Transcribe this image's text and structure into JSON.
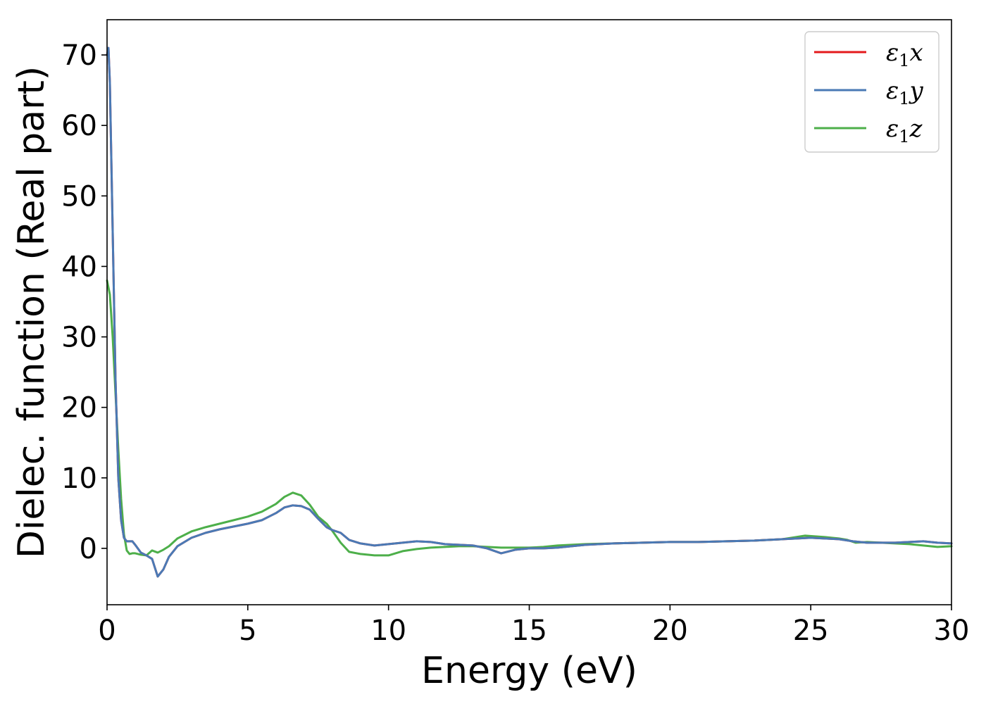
{
  "chart_data": {
    "type": "line",
    "title": "",
    "xlabel": "Energy (eV)",
    "ylabel": "Dielec. function (Real part)",
    "xlim": [
      0,
      30
    ],
    "ylim": [
      -8,
      75
    ],
    "xticks": [
      0,
      5,
      10,
      15,
      20,
      25,
      30
    ],
    "yticks": [
      0,
      10,
      20,
      30,
      40,
      50,
      60,
      70
    ],
    "grid": false,
    "legend_position": "top-right",
    "series": [
      {
        "name": "ε₁x",
        "legend": {
          "base": "ε",
          "sub": "1",
          "suffix": "x"
        },
        "color": "#e41a1c",
        "x": [
          0,
          0.05,
          0.1,
          0.2,
          0.3,
          0.4,
          0.5,
          0.6,
          0.7,
          0.8,
          0.9,
          1.0,
          1.2,
          1.4,
          1.6,
          1.8,
          2.0,
          2.2,
          2.5,
          3,
          3.5,
          4,
          4.5,
          5,
          5.5,
          6,
          6.3,
          6.6,
          6.9,
          7.2,
          7.5,
          7.8,
          8,
          8.3,
          8.6,
          9,
          9.5,
          10,
          10.5,
          11,
          11.5,
          12,
          12.5,
          13,
          13.5,
          14,
          14.5,
          15,
          15.5,
          16,
          16.5,
          17,
          18,
          19,
          20,
          21,
          22,
          23,
          24,
          25,
          25.5,
          26,
          26.5,
          27,
          27.5,
          28,
          28.5,
          29,
          29.5,
          30
        ],
        "y": [
          70,
          71,
          66,
          45,
          24,
          10,
          4,
          1.5,
          1.0,
          1.0,
          1.0,
          0.5,
          -0.6,
          -1.0,
          -1.5,
          -4.0,
          -3.0,
          -1.2,
          0.3,
          1.5,
          2.2,
          2.7,
          3.1,
          3.5,
          4.0,
          5.0,
          5.8,
          6.1,
          6.0,
          5.5,
          4.2,
          3.0,
          2.6,
          2.2,
          1.2,
          0.7,
          0.4,
          0.6,
          0.8,
          1.0,
          0.9,
          0.6,
          0.5,
          0.4,
          0.0,
          -0.7,
          -0.2,
          0.0,
          0.0,
          0.1,
          0.3,
          0.5,
          0.7,
          0.8,
          0.9,
          0.9,
          1.0,
          1.1,
          1.3,
          1.5,
          1.4,
          1.3,
          1.0,
          0.8,
          0.8,
          0.8,
          0.9,
          1.0,
          0.8,
          0.7
        ]
      },
      {
        "name": "ε₁y",
        "legend": {
          "base": "ε",
          "sub": "1",
          "suffix": "y"
        },
        "color": "#4a7ab5",
        "x": [
          0,
          0.05,
          0.1,
          0.2,
          0.3,
          0.4,
          0.5,
          0.6,
          0.7,
          0.8,
          0.9,
          1.0,
          1.2,
          1.4,
          1.6,
          1.8,
          2.0,
          2.2,
          2.5,
          3,
          3.5,
          4,
          4.5,
          5,
          5.5,
          6,
          6.3,
          6.6,
          6.9,
          7.2,
          7.5,
          7.8,
          8,
          8.3,
          8.6,
          9,
          9.5,
          10,
          10.5,
          11,
          11.5,
          12,
          12.5,
          13,
          13.5,
          14,
          14.5,
          15,
          15.5,
          16,
          16.5,
          17,
          18,
          19,
          20,
          21,
          22,
          23,
          24,
          25,
          25.5,
          26,
          26.5,
          27,
          27.5,
          28,
          28.5,
          29,
          29.5,
          30
        ],
        "y": [
          70,
          71,
          66,
          45,
          24,
          10,
          4,
          1.5,
          1.0,
          1.0,
          1.0,
          0.5,
          -0.6,
          -1.0,
          -1.5,
          -4.0,
          -3.0,
          -1.2,
          0.3,
          1.5,
          2.2,
          2.7,
          3.1,
          3.5,
          4.0,
          5.0,
          5.8,
          6.1,
          6.0,
          5.5,
          4.2,
          3.0,
          2.6,
          2.2,
          1.2,
          0.7,
          0.4,
          0.6,
          0.8,
          1.0,
          0.9,
          0.6,
          0.5,
          0.4,
          0.0,
          -0.7,
          -0.2,
          0.0,
          0.0,
          0.1,
          0.3,
          0.5,
          0.7,
          0.8,
          0.9,
          0.9,
          1.0,
          1.1,
          1.3,
          1.5,
          1.4,
          1.3,
          1.0,
          0.8,
          0.8,
          0.8,
          0.9,
          1.0,
          0.8,
          0.7
        ]
      },
      {
        "name": "ε₁z",
        "legend": {
          "base": "ε",
          "sub": "1",
          "suffix": "z"
        },
        "color": "#4daf4a",
        "x": [
          0,
          0.1,
          0.2,
          0.3,
          0.4,
          0.5,
          0.6,
          0.7,
          0.8,
          0.9,
          1.0,
          1.2,
          1.4,
          1.6,
          1.8,
          2.0,
          2.2,
          2.5,
          3,
          3.5,
          4,
          4.5,
          5,
          5.5,
          6,
          6.3,
          6.6,
          6.9,
          7.2,
          7.5,
          7.8,
          8,
          8.3,
          8.6,
          9,
          9.5,
          10,
          10.5,
          11,
          11.5,
          12,
          12.5,
          13,
          13.5,
          14,
          14.5,
          15,
          15.5,
          16,
          16.5,
          17,
          18,
          19,
          20,
          21,
          22,
          23,
          24,
          24.8,
          25.5,
          26,
          26.3,
          26.6,
          27,
          27.5,
          28,
          28.5,
          29,
          29.5,
          30
        ],
        "y": [
          38,
          36,
          30,
          22,
          14,
          7,
          2,
          -0.3,
          -0.8,
          -0.7,
          -0.7,
          -0.9,
          -1.0,
          -0.3,
          -0.6,
          -0.2,
          0.3,
          1.4,
          2.4,
          3.0,
          3.5,
          4.0,
          4.5,
          5.2,
          6.3,
          7.3,
          7.9,
          7.5,
          6.2,
          4.5,
          3.5,
          2.5,
          0.8,
          -0.5,
          -0.8,
          -1.0,
          -1.0,
          -0.4,
          -0.1,
          0.1,
          0.2,
          0.3,
          0.3,
          0.2,
          0.1,
          0.1,
          0.1,
          0.2,
          0.4,
          0.5,
          0.6,
          0.7,
          0.8,
          0.9,
          0.9,
          1.0,
          1.1,
          1.3,
          1.8,
          1.6,
          1.4,
          1.2,
          0.8,
          0.9,
          0.8,
          0.7,
          0.6,
          0.4,
          0.2,
          0.3
        ]
      }
    ]
  }
}
